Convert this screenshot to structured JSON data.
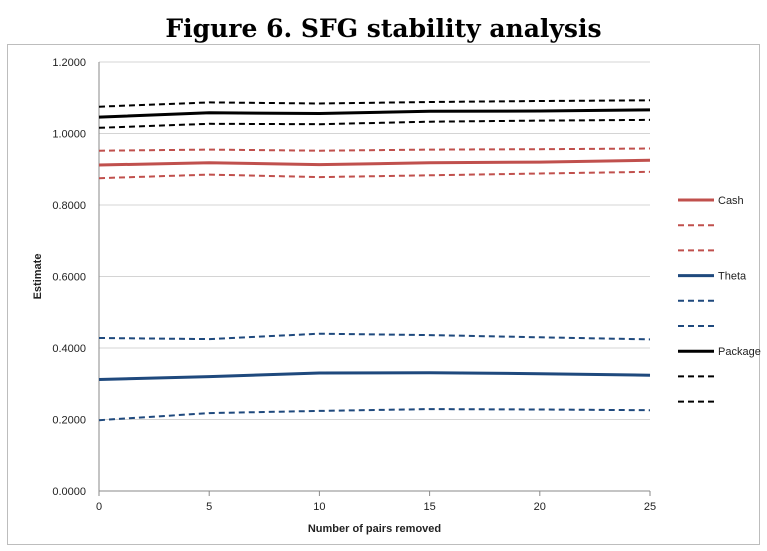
{
  "figure": {
    "title": "Figure 6. SFG stability analysis"
  },
  "chart_data": {
    "type": "line",
    "title": "Figure 6. SFG stability analysis",
    "xlabel": "Number of pairs removed",
    "ylabel": "Estimate",
    "xlim": [
      0,
      25
    ],
    "ylim": [
      0,
      1.2
    ],
    "x_ticks": [
      0,
      5,
      10,
      15,
      20,
      25
    ],
    "y_ticks": [
      0,
      0.2,
      0.4,
      0.6,
      0.8,
      1.0,
      1.2
    ],
    "x_tick_labels": [
      "0",
      "5",
      "10",
      "15",
      "20",
      "25"
    ],
    "y_tick_labels": [
      "0.0000",
      "0.2000",
      "0.4000",
      "0.6000",
      "0.8000",
      "1.0000",
      "1.2000"
    ],
    "grid": "horizontal",
    "legend_position": "right",
    "x": [
      0,
      5,
      10,
      15,
      20,
      25
    ],
    "series": [
      {
        "name": "Cash",
        "color": "#c0504d",
        "dashed": false,
        "values": [
          0.912,
          0.918,
          0.913,
          0.918,
          0.92,
          0.925
        ]
      },
      {
        "name": "",
        "color": "#c0504d",
        "dashed": true,
        "values": [
          0.952,
          0.955,
          0.952,
          0.955,
          0.956,
          0.958
        ]
      },
      {
        "name": "",
        "color": "#c0504d",
        "dashed": true,
        "values": [
          0.875,
          0.885,
          0.878,
          0.883,
          0.888,
          0.893
        ]
      },
      {
        "name": "Theta",
        "color": "#1f497d",
        "dashed": false,
        "values": [
          0.312,
          0.32,
          0.33,
          0.331,
          0.328,
          0.324
        ]
      },
      {
        "name": "",
        "color": "#1f497d",
        "dashed": true,
        "values": [
          0.428,
          0.425,
          0.44,
          0.436,
          0.43,
          0.424
        ]
      },
      {
        "name": "",
        "color": "#1f497d",
        "dashed": true,
        "values": [
          0.198,
          0.218,
          0.224,
          0.229,
          0.228,
          0.226
        ]
      },
      {
        "name": "Package",
        "color": "#000000",
        "dashed": false,
        "values": [
          1.046,
          1.058,
          1.056,
          1.062,
          1.063,
          1.066
        ]
      },
      {
        "name": "",
        "color": "#000000",
        "dashed": true,
        "values": [
          1.075,
          1.087,
          1.084,
          1.088,
          1.091,
          1.093
        ]
      },
      {
        "name": "",
        "color": "#000000",
        "dashed": true,
        "values": [
          1.016,
          1.027,
          1.026,
          1.033,
          1.036,
          1.038
        ]
      }
    ]
  }
}
